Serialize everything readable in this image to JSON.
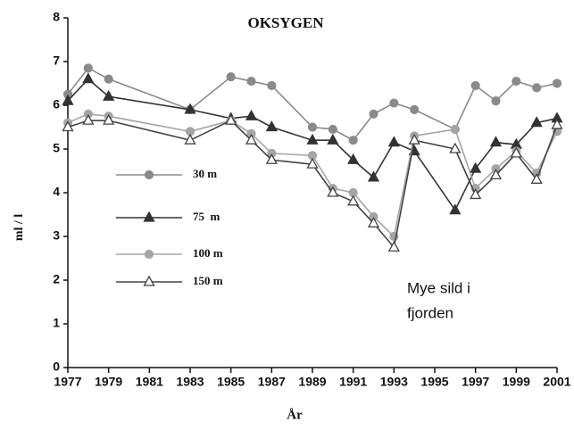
{
  "chart_data": {
    "type": "line",
    "title": "OKSYGEN",
    "xlabel": "År",
    "ylabel": "ml / l",
    "x": [
      1977,
      1978,
      1979,
      1983,
      1985,
      1986,
      1987,
      1989,
      1990,
      1991,
      1992,
      1993,
      1994,
      1996,
      1997,
      1998,
      1999,
      2000,
      2001
    ],
    "series": [
      {
        "name": "30 m",
        "color": "#8a8a8a",
        "marker": "circle",
        "filled": true,
        "values": [
          6.25,
          6.85,
          6.6,
          5.9,
          6.65,
          6.55,
          6.45,
          5.5,
          5.45,
          5.2,
          5.8,
          6.05,
          5.9,
          5.45,
          6.45,
          6.1,
          6.55,
          6.4,
          6.5
        ]
      },
      {
        "name": "75  m",
        "color": "#333333",
        "marker": "triangle",
        "filled": true,
        "values": [
          6.1,
          6.6,
          6.2,
          5.9,
          5.7,
          5.75,
          5.5,
          5.2,
          5.2,
          4.75,
          4.35,
          5.15,
          4.95,
          3.6,
          4.55,
          5.15,
          5.1,
          5.6,
          5.7
        ]
      },
      {
        "name": "100 m",
        "color": "#a5a5a5",
        "marker": "circle",
        "filled": true,
        "values": [
          5.6,
          5.8,
          5.75,
          5.4,
          5.65,
          5.35,
          4.9,
          4.85,
          4.1,
          4.0,
          3.45,
          3.0,
          5.3,
          5.45,
          4.1,
          4.55,
          4.95,
          4.45,
          5.4
        ]
      },
      {
        "name": "150 m",
        "color": "#444444",
        "marker": "triangle",
        "filled": false,
        "values": [
          5.5,
          5.65,
          5.65,
          5.2,
          5.65,
          5.2,
          4.75,
          4.65,
          4.0,
          3.8,
          3.3,
          2.75,
          5.2,
          5.0,
          3.95,
          4.4,
          4.9,
          4.3,
          5.55
        ]
      }
    ],
    "annotation": [
      "Mye sild i",
      "fjorden"
    ],
    "xlim": [
      1977,
      2001
    ],
    "xticks": [
      1977,
      1979,
      1981,
      1983,
      1985,
      1987,
      1989,
      1991,
      1993,
      1995,
      1997,
      1999,
      2001
    ],
    "ylim": [
      0,
      8
    ],
    "yticks": [
      0,
      1,
      2,
      3,
      4,
      5,
      6,
      7,
      8
    ],
    "grid": false
  }
}
